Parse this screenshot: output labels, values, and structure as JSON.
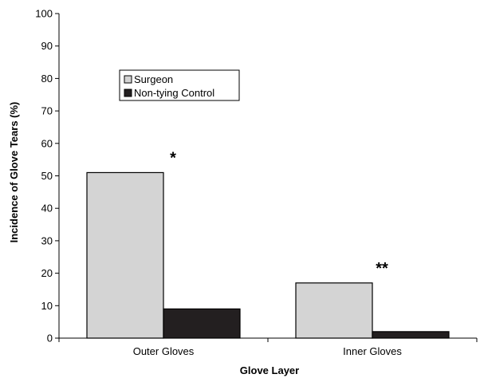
{
  "chart_data": {
    "type": "bar",
    "title": "",
    "xlabel": "Glove Layer",
    "ylabel": "Incidence of Glove Tears (%)",
    "ylim": [
      0,
      100
    ],
    "yticks": [
      "0",
      "10",
      "20",
      "30",
      "40",
      "50",
      "60",
      "70",
      "80",
      "90",
      "100"
    ],
    "categories": [
      "Outer Gloves",
      "Inner Gloves"
    ],
    "series": [
      {
        "name": "Surgeon",
        "values": [
          51,
          17
        ],
        "color": "#d4d4d4"
      },
      {
        "name": "Non-tying Control",
        "values": [
          9,
          2
        ],
        "color": "#231f20"
      }
    ],
    "annotations": [
      "*",
      "**"
    ],
    "legend_position": "top-left",
    "grid": false
  }
}
